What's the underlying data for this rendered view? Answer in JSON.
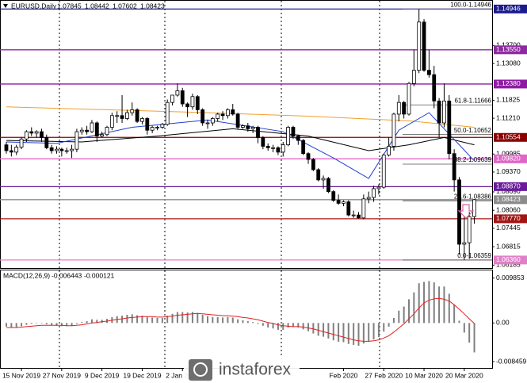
{
  "chart_data": {
    "type": "candlestick",
    "symbol": "EURUSD,Daily",
    "categories": [
      null,
      null,
      null,
      "15 Nov 2019",
      null,
      null,
      null,
      null,
      null,
      null,
      null,
      "27 Nov 2019",
      null,
      null,
      null,
      null,
      null,
      null,
      null,
      "9 Dec 2019",
      null,
      null,
      null,
      null,
      null,
      null,
      null,
      "19 Dec 2019",
      null,
      null,
      null,
      null,
      null,
      null,
      null,
      "2 Jan 2020",
      null,
      null,
      null,
      null,
      null,
      null,
      null,
      null,
      null,
      null,
      null,
      null,
      null,
      null,
      null,
      null,
      null,
      null,
      null,
      null,
      null,
      null,
      null,
      null,
      null,
      null,
      null,
      null,
      null,
      null,
      null,
      "Feb 2020",
      null,
      null,
      null,
      null,
      null,
      null,
      null,
      "27 Feb 2020",
      null,
      null,
      null,
      null,
      null,
      null,
      null,
      "10 Mar 2020",
      null,
      null,
      null,
      null,
      null,
      null,
      null,
      "20 Mar 2020",
      null,
      null
    ],
    "ohlc": [
      [
        1.103,
        1.104,
        1.1,
        1.101
      ],
      [
        1.101,
        1.103,
        1.099,
        1.1005
      ],
      [
        1.1005,
        1.103,
        1.0995,
        1.1022
      ],
      [
        1.1022,
        1.1055,
        1.1015,
        1.105
      ],
      [
        1.105,
        1.108,
        1.104,
        1.1075
      ],
      [
        1.1075,
        1.109,
        1.106,
        1.107
      ],
      [
        1.107,
        1.108,
        1.1055,
        1.1075
      ],
      [
        1.1075,
        1.1085,
        1.104,
        1.1055
      ],
      [
        1.1055,
        1.1065,
        1.1015,
        1.102
      ],
      [
        1.102,
        1.103,
        1.1,
        1.101
      ],
      [
        1.101,
        1.1025,
        1.1,
        1.1015
      ],
      [
        1.1015,
        1.102,
        1.099,
        1.101
      ],
      [
        1.101,
        1.102,
        1.1,
        1.101
      ],
      [
        1.101,
        1.103,
        1.0985,
        1.1015
      ],
      [
        1.1015,
        1.1085,
        1.1005,
        1.1075
      ],
      [
        1.1075,
        1.109,
        1.1065,
        1.108
      ],
      [
        1.108,
        1.1095,
        1.1065,
        1.1075
      ],
      [
        1.1075,
        1.1115,
        1.107,
        1.1105
      ],
      [
        1.1105,
        1.111,
        1.104,
        1.106
      ],
      [
        1.106,
        1.1075,
        1.1055,
        1.1065
      ],
      [
        1.1065,
        1.1095,
        1.106,
        1.109
      ],
      [
        1.109,
        1.114,
        1.108,
        1.113
      ],
      [
        1.113,
        1.1145,
        1.1105,
        1.113
      ],
      [
        1.113,
        1.12,
        1.1105,
        1.112
      ],
      [
        1.112,
        1.115,
        1.1115,
        1.114
      ],
      [
        1.114,
        1.1175,
        1.113,
        1.115
      ],
      [
        1.115,
        1.1155,
        1.1105,
        1.111
      ],
      [
        1.111,
        1.1125,
        1.11,
        1.112
      ],
      [
        1.112,
        1.1125,
        1.1065,
        1.108
      ],
      [
        1.108,
        1.1095,
        1.107,
        1.109
      ],
      [
        1.109,
        1.1095,
        1.108,
        1.109
      ],
      [
        1.109,
        1.1105,
        1.1085,
        1.11
      ],
      [
        1.11,
        1.1185,
        1.1095,
        1.1175
      ],
      [
        1.1175,
        1.12,
        1.1165,
        1.12
      ],
      [
        1.12,
        1.124,
        1.1195,
        1.1215
      ],
      [
        1.1215,
        1.1225,
        1.116,
        1.117
      ],
      [
        1.117,
        1.1175,
        1.1125,
        1.116
      ],
      [
        1.116,
        1.1205,
        1.115,
        1.1195
      ],
      [
        1.1195,
        1.12,
        1.1135,
        1.115
      ],
      [
        1.115,
        1.1155,
        1.1095,
        1.1105
      ],
      [
        1.1105,
        1.1115,
        1.1085,
        1.1105
      ],
      [
        1.1105,
        1.1125,
        1.1095,
        1.112
      ],
      [
        1.112,
        1.114,
        1.111,
        1.1135
      ],
      [
        1.1135,
        1.1145,
        1.1115,
        1.113
      ],
      [
        1.113,
        1.1155,
        1.112,
        1.115
      ],
      [
        1.115,
        1.117,
        1.113,
        1.1135
      ],
      [
        1.1135,
        1.114,
        1.1085,
        1.109
      ],
      [
        1.109,
        1.11,
        1.1085,
        1.1095
      ],
      [
        1.1095,
        1.1105,
        1.1075,
        1.1085
      ],
      [
        1.1085,
        1.1095,
        1.107,
        1.109
      ],
      [
        1.109,
        1.1095,
        1.1035,
        1.1055
      ],
      [
        1.1055,
        1.106,
        1.1015,
        1.1025
      ],
      [
        1.1025,
        1.1035,
        1.101,
        1.102
      ],
      [
        1.102,
        1.103,
        1.1005,
        1.102
      ],
      [
        1.102,
        1.1025,
        1.0995,
        1.1005
      ],
      [
        1.1005,
        1.104,
        1.099,
        1.103
      ],
      [
        1.103,
        1.1095,
        1.1025,
        1.109
      ],
      [
        1.109,
        1.1095,
        1.105,
        1.106
      ],
      [
        1.106,
        1.1065,
        1.103,
        1.1045
      ],
      [
        1.1045,
        1.105,
        1.0995,
        1.1
      ],
      [
        1.1,
        1.1005,
        1.0965,
        1.098
      ],
      [
        1.098,
        1.0985,
        1.094,
        1.0945
      ],
      [
        1.0945,
        1.095,
        1.0905,
        1.091
      ],
      [
        1.091,
        1.0925,
        1.088,
        1.0915
      ],
      [
        1.0915,
        1.092,
        1.0865,
        1.087
      ],
      [
        1.087,
        1.0875,
        1.0835,
        1.084
      ],
      [
        1.084,
        1.086,
        1.0825,
        1.083
      ],
      [
        1.083,
        1.084,
        1.082,
        1.0835
      ],
      [
        1.0835,
        1.084,
        1.0785,
        1.079
      ],
      [
        1.079,
        1.0805,
        1.078,
        1.079
      ],
      [
        1.079,
        1.08,
        1.0778,
        1.078
      ],
      [
        1.078,
        1.086,
        1.0775,
        1.0845
      ],
      [
        1.0845,
        1.087,
        1.083,
        1.085
      ],
      [
        1.085,
        1.089,
        1.0835,
        1.088
      ],
      [
        1.088,
        1.0895,
        1.086,
        1.0885
      ],
      [
        1.0885,
        1.1,
        1.088,
        1.0995
      ],
      [
        1.0995,
        1.1055,
        1.099,
        1.1025
      ],
      [
        1.1025,
        1.114,
        1.101,
        1.1135
      ],
      [
        1.1135,
        1.12,
        1.111,
        1.1175
      ],
      [
        1.1175,
        1.118,
        1.112,
        1.1135
      ],
      [
        1.1135,
        1.1245,
        1.113,
        1.124
      ],
      [
        1.124,
        1.1355,
        1.123,
        1.1285
      ],
      [
        1.1285,
        1.14946,
        1.1275,
        1.145
      ],
      [
        1.145,
        1.146,
        1.128,
        1.1285
      ],
      [
        1.1285,
        1.1355,
        1.126,
        1.127
      ],
      [
        1.127,
        1.13,
        1.1155,
        1.118
      ],
      [
        1.118,
        1.119,
        1.1055,
        1.1105
      ],
      [
        1.1105,
        1.124,
        1.109,
        1.118
      ],
      [
        1.118,
        1.12,
        1.098,
        1.1
      ],
      [
        1.1,
        1.1015,
        1.087,
        1.091
      ],
      [
        1.091,
        1.092,
        1.0655,
        1.069
      ],
      [
        1.069,
        1.0785,
        1.06359,
        1.0695
      ],
      [
        1.0695,
        1.08,
        1.064,
        1.07845
      ],
      [
        1.07845,
        1.08442,
        1.07602,
        1.08423
      ]
    ],
    "overlays": [
      {
        "color": "#f0a030",
        "x": [
          0,
          20,
          40,
          60,
          80,
          93
        ],
        "values": [
          1.116,
          1.115,
          1.114,
          1.1128,
          1.1112,
          1.109
        ]
      },
      {
        "color": "#000000",
        "x": [
          0,
          15,
          30,
          45,
          60,
          72,
          80,
          87,
          93
        ],
        "values": [
          1.1045,
          1.104,
          1.106,
          1.1085,
          1.106,
          1.101,
          1.103,
          1.1055,
          1.103
        ]
      },
      {
        "color": "#2040d0",
        "x": [
          0,
          10,
          25,
          40,
          55,
          65,
          72,
          78,
          84,
          90,
          93
        ],
        "values": [
          1.104,
          1.1035,
          1.109,
          1.1115,
          1.1075,
          1.0985,
          1.0915,
          1.108,
          1.114,
          1.103,
          1.0975
        ]
      }
    ],
    "ylim": [
      1.0614,
      1.152
    ],
    "yticks": [
      {
        "value": 1.137,
        "label": "1.13700"
      },
      {
        "value": 1.1308,
        "label": "1.13080"
      },
      1.11825,
      {
        "value": 1.1121,
        "label": "1.11210"
      },
      1.09985,
      {
        "value": 1.0937,
        "label": "1.09370"
      },
      {
        "value": 1.0869,
        "label": "1.08690"
      },
      {
        "value": 1.0806,
        "label": "1.08060"
      },
      1.07445,
      1.06815,
      1.06185
    ],
    "levels": [
      {
        "value": 1.14946,
        "color": "#1c1c8e"
      },
      {
        "value": 1.1355,
        "label": "1.13550",
        "color": "#8e2aa0"
      },
      {
        "value": 1.1238,
        "label": "1.12380",
        "color": "#8e1aa4"
      },
      {
        "value": 1.10554,
        "color": "#8b0000"
      },
      {
        "value": 1.0982,
        "label": "1.09820",
        "color": "#e066c8"
      },
      {
        "value": 1.0887,
        "label": "1.08870",
        "color": "#6a1b9a"
      },
      {
        "value": 1.08423,
        "color": "#8c8c8c"
      },
      {
        "value": 1.0777,
        "label": "1.07770",
        "color": "#a31515"
      },
      {
        "value": 1.0636,
        "label": "1.06360",
        "color": "#e080c8"
      }
    ],
    "fib": [
      {
        "value": 1.14946,
        "label": "100.0-1.14946"
      },
      {
        "value": 1.11666,
        "label": "61.8-1.11666"
      },
      {
        "value": 1.10652,
        "label": "50.0-1.10652"
      },
      {
        "value": 1.09639,
        "label": "38.2-1.09639"
      },
      {
        "value": 1.08386,
        "label": "23.6-1.08386"
      },
      {
        "value": 1.06359,
        "label": "0.0-1.06359"
      }
    ],
    "macd": {
      "name": "MACD(12,26,9)",
      "hist_color": "#808080",
      "signal_color": "#e02020",
      "values": [
        -0.0008,
        -0.0009,
        -0.0009,
        -0.0007,
        -0.0004,
        -0.0002,
        -0.0001,
        -0.0001,
        -0.0003,
        -0.0005,
        -0.0006,
        -0.0007,
        -0.0007,
        -0.0007,
        -0.0002,
        0.0002,
        0.0004,
        0.0008,
        0.0007,
        0.0007,
        0.0009,
        0.0013,
        0.0015,
        0.0016,
        0.0018,
        0.0019,
        0.0017,
        0.0016,
        0.0013,
        0.0012,
        0.0011,
        0.0011,
        0.0016,
        0.002,
        0.0024,
        0.0024,
        0.0023,
        0.0024,
        0.0022,
        0.0018,
        0.0015,
        0.0013,
        0.0013,
        0.0012,
        0.0013,
        0.0012,
        0.0008,
        0.0006,
        0.0004,
        0.0002,
        -0.0002,
        -0.0006,
        -0.001,
        -0.0012,
        -0.0015,
        -0.0015,
        -0.001,
        -0.0009,
        -0.001,
        -0.0014,
        -0.0018,
        -0.0023,
        -0.0028,
        -0.003,
        -0.0034,
        -0.0038,
        -0.0041,
        -0.0042,
        -0.0046,
        -0.0048,
        -0.005,
        -0.0045,
        -0.0041,
        -0.0036,
        -0.0031,
        -0.0019,
        -0.0008,
        0.0011,
        0.0027,
        0.0036,
        0.0052,
        0.0067,
        0.0087,
        0.009,
        0.0092,
        0.0089,
        0.008,
        0.008,
        0.0064,
        0.004,
        0.0005,
        -0.0021,
        -0.0043,
        -0.006443
      ],
      "signal": [
        -0.001,
        -0.001,
        -0.001,
        -0.0009,
        -0.0008,
        -0.0007,
        -0.0006,
        -0.0005,
        -0.0005,
        -0.0005,
        -0.0005,
        -0.0005,
        -0.0006,
        -0.0006,
        -0.0005,
        -0.0004,
        -0.0002,
        0.0,
        0.0001,
        0.0003,
        0.0004,
        0.0006,
        0.0008,
        0.0009,
        0.0011,
        0.0012,
        0.0013,
        0.0014,
        0.0014,
        0.0014,
        0.0013,
        0.0013,
        0.0014,
        0.0015,
        0.0017,
        0.0018,
        0.0019,
        0.002,
        0.0021,
        0.002,
        0.0019,
        0.0018,
        0.0017,
        0.0016,
        0.0016,
        0.0015,
        0.0014,
        0.0012,
        0.0011,
        0.0009,
        0.0007,
        0.0004,
        0.0001,
        -0.0001,
        -0.0004,
        -0.0006,
        -0.0007,
        -0.0008,
        -0.0008,
        -0.0009,
        -0.0011,
        -0.0013,
        -0.0016,
        -0.0019,
        -0.0022,
        -0.0025,
        -0.0028,
        -0.0031,
        -0.0034,
        -0.0037,
        -0.0039,
        -0.004,
        -0.004,
        -0.0039,
        -0.0037,
        -0.0033,
        -0.0028,
        -0.002,
        -0.0011,
        -0.0002,
        0.0009,
        0.002,
        0.0033,
        0.0044,
        0.005,
        0.0053,
        0.0054,
        0.0052,
        0.0048,
        0.004,
        0.003,
        0.002,
        0.0009,
        -0.000121
      ],
      "ylim": [
        -0.0095,
        0.011
      ],
      "yticks": [
        0.009853,
        {
          "value": 0,
          "label": "0.00"
        },
        -0.008459
      ]
    },
    "watermark": "instaforex"
  }
}
